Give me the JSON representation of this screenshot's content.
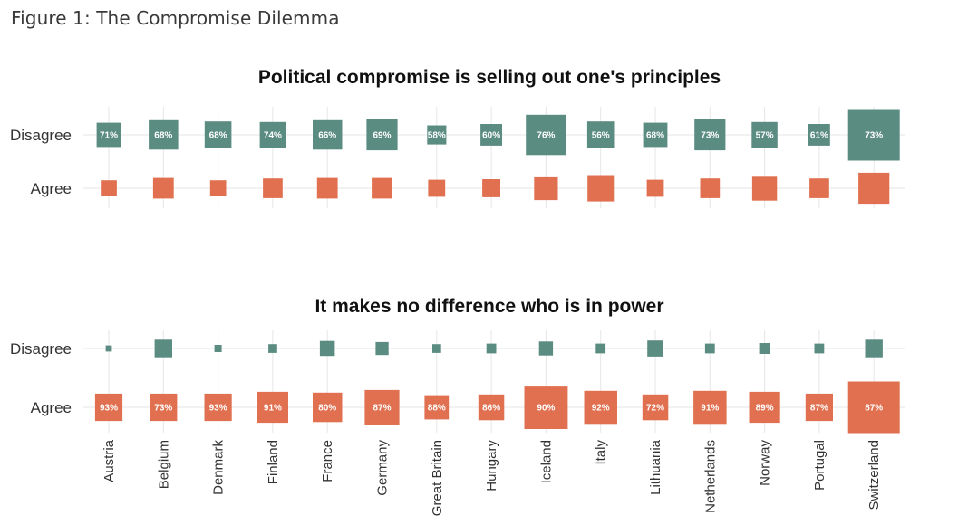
{
  "figure_title": "Figure 1: The Compromise Dilemma",
  "colors": {
    "disagree": "#5b8c82",
    "agree": "#e07050",
    "grid": "#e6e6e6"
  },
  "chart_data": [
    {
      "type": "scatter",
      "title": "Political compromise is selling out one's principles",
      "rows": [
        "Disagree",
        "Agree"
      ],
      "categories": [
        "Austria",
        "Belgium",
        "Denmark",
        "Finland",
        "France",
        "Germany",
        "Great Britain",
        "Hungary",
        "Iceland",
        "Italy",
        "Lithuania",
        "Netherlands",
        "Norway",
        "Portugal",
        "Switzerland"
      ],
      "labeled_row": "Disagree",
      "series": [
        {
          "name": "Disagree",
          "color": "#5b8c82",
          "values": [
            71,
            68,
            68,
            74,
            66,
            69,
            58,
            60,
            76,
            56,
            68,
            73,
            57,
            61,
            73
          ],
          "labels": [
            "71%",
            "68%",
            "68%",
            "74%",
            "66%",
            "69%",
            "58%",
            "60%",
            "76%",
            "56%",
            "68%",
            "73%",
            "57%",
            "61%",
            "73%"
          ],
          "size": [
            0.47,
            0.57,
            0.52,
            0.5,
            0.57,
            0.6,
            0.37,
            0.42,
            0.78,
            0.52,
            0.47,
            0.6,
            0.5,
            0.42,
            1.0
          ]
        },
        {
          "name": "Agree",
          "color": "#e07050",
          "values": [
            29,
            32,
            32,
            26,
            34,
            31,
            42,
            40,
            24,
            44,
            32,
            27,
            43,
            39,
            27
          ],
          "size": [
            0.31,
            0.4,
            0.31,
            0.38,
            0.4,
            0.4,
            0.33,
            0.35,
            0.46,
            0.51,
            0.33,
            0.38,
            0.48,
            0.38,
            0.6
          ]
        }
      ]
    },
    {
      "type": "scatter",
      "title": "It makes no difference who is in power",
      "rows": [
        "Disagree",
        "Agree"
      ],
      "categories": [
        "Austria",
        "Belgium",
        "Denmark",
        "Finland",
        "France",
        "Germany",
        "Great Britain",
        "Hungary",
        "Iceland",
        "Italy",
        "Lithuania",
        "Netherlands",
        "Norway",
        "Portugal",
        "Switzerland"
      ],
      "labeled_row": "Agree",
      "series": [
        {
          "name": "Disagree",
          "color": "#5b8c82",
          "values": [
            7,
            27,
            7,
            9,
            20,
            13,
            12,
            14,
            10,
            8,
            28,
            9,
            11,
            13,
            13
          ],
          "size": [
            0.12,
            0.34,
            0.14,
            0.17,
            0.29,
            0.25,
            0.17,
            0.19,
            0.27,
            0.19,
            0.31,
            0.19,
            0.21,
            0.19,
            0.34
          ]
        },
        {
          "name": "Agree",
          "color": "#e07050",
          "values": [
            93,
            73,
            93,
            91,
            80,
            87,
            88,
            86,
            90,
            92,
            72,
            91,
            89,
            87,
            87
          ],
          "labels": [
            "93%",
            "73%",
            "93%",
            "91%",
            "80%",
            "87%",
            "88%",
            "86%",
            "90%",
            "92%",
            "72%",
            "91%",
            "89%",
            "87%",
            "87%"
          ],
          "size": [
            0.53,
            0.53,
            0.53,
            0.6,
            0.57,
            0.67,
            0.47,
            0.5,
            0.84,
            0.64,
            0.5,
            0.64,
            0.6,
            0.53,
            1.0
          ]
        }
      ]
    }
  ]
}
